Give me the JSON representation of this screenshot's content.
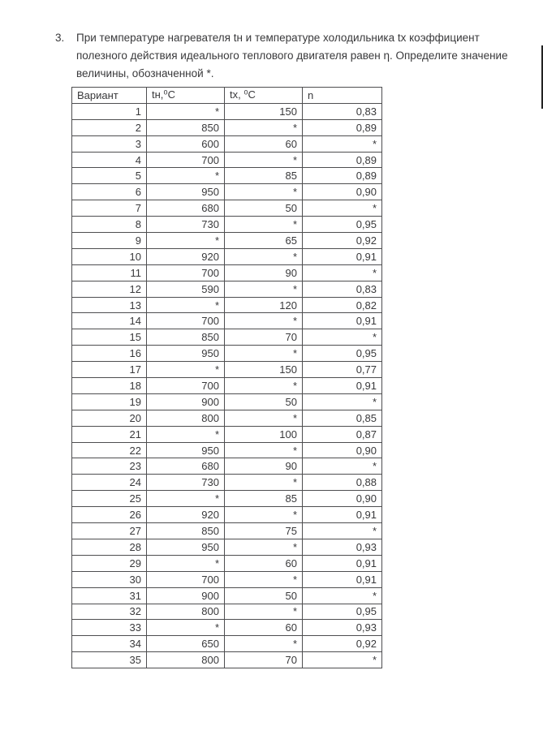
{
  "page": {
    "background": "#ffffff",
    "text_color": "#39393b",
    "border_color": "#4e4e50"
  },
  "problem": {
    "number": "3.",
    "text": "При температуре нагревателя tн и температуре холодильника tx коэффициент полезного действия идеального теплового двигателя равен η. Определите значение величины, обозначенной *."
  },
  "table": {
    "headers": [
      "Вариант",
      "tн,⁰C",
      "tx, ⁰C",
      "n"
    ],
    "rows": [
      [
        "1",
        "*",
        "150",
        "0,83"
      ],
      [
        "2",
        "850",
        "*",
        "0,89"
      ],
      [
        "3",
        "600",
        "60",
        "*"
      ],
      [
        "4",
        "700",
        "*",
        "0,89"
      ],
      [
        "5",
        "*",
        "85",
        "0,89"
      ],
      [
        "6",
        "950",
        "*",
        "0,90"
      ],
      [
        "7",
        "680",
        "50",
        "*"
      ],
      [
        "8",
        "730",
        "*",
        "0,95"
      ],
      [
        "9",
        "*",
        "65",
        "0,92"
      ],
      [
        "10",
        "920",
        "*",
        "0,91"
      ],
      [
        "11",
        "700",
        "90",
        "*"
      ],
      [
        "12",
        "590",
        "*",
        "0,83"
      ],
      [
        "13",
        "*",
        "120",
        "0,82"
      ],
      [
        "14",
        "700",
        "*",
        "0,91"
      ],
      [
        "15",
        "850",
        "70",
        "*"
      ],
      [
        "16",
        "950",
        "*",
        "0,95"
      ],
      [
        "17",
        "*",
        "150",
        "0,77"
      ],
      [
        "18",
        "700",
        "*",
        "0,91"
      ],
      [
        "19",
        "900",
        "50",
        "*"
      ],
      [
        "20",
        "800",
        "*",
        "0,85"
      ],
      [
        "21",
        "*",
        "100",
        "0,87"
      ],
      [
        "22",
        "950",
        "*",
        "0,90"
      ],
      [
        "23",
        "680",
        "90",
        "*"
      ],
      [
        "24",
        "730",
        "*",
        "0,88"
      ],
      [
        "25",
        "*",
        "85",
        "0,90"
      ],
      [
        "26",
        "920",
        "*",
        "0,91"
      ],
      [
        "27",
        "850",
        "75",
        "*"
      ],
      [
        "28",
        "950",
        "*",
        "0,93"
      ],
      [
        "29",
        "*",
        "60",
        "0,91"
      ],
      [
        "30",
        "700",
        "*",
        "0,91"
      ],
      [
        "31",
        "900",
        "50",
        "*"
      ],
      [
        "32",
        "800",
        "*",
        "0,95"
      ],
      [
        "33",
        "*",
        "60",
        "0,93"
      ],
      [
        "34",
        "650",
        "*",
        "0,92"
      ],
      [
        "35",
        "800",
        "70",
        "*"
      ]
    ],
    "cell_names": [
      "variant-cell",
      "tn-cell",
      "tx-cell",
      "eta-cell"
    ]
  }
}
